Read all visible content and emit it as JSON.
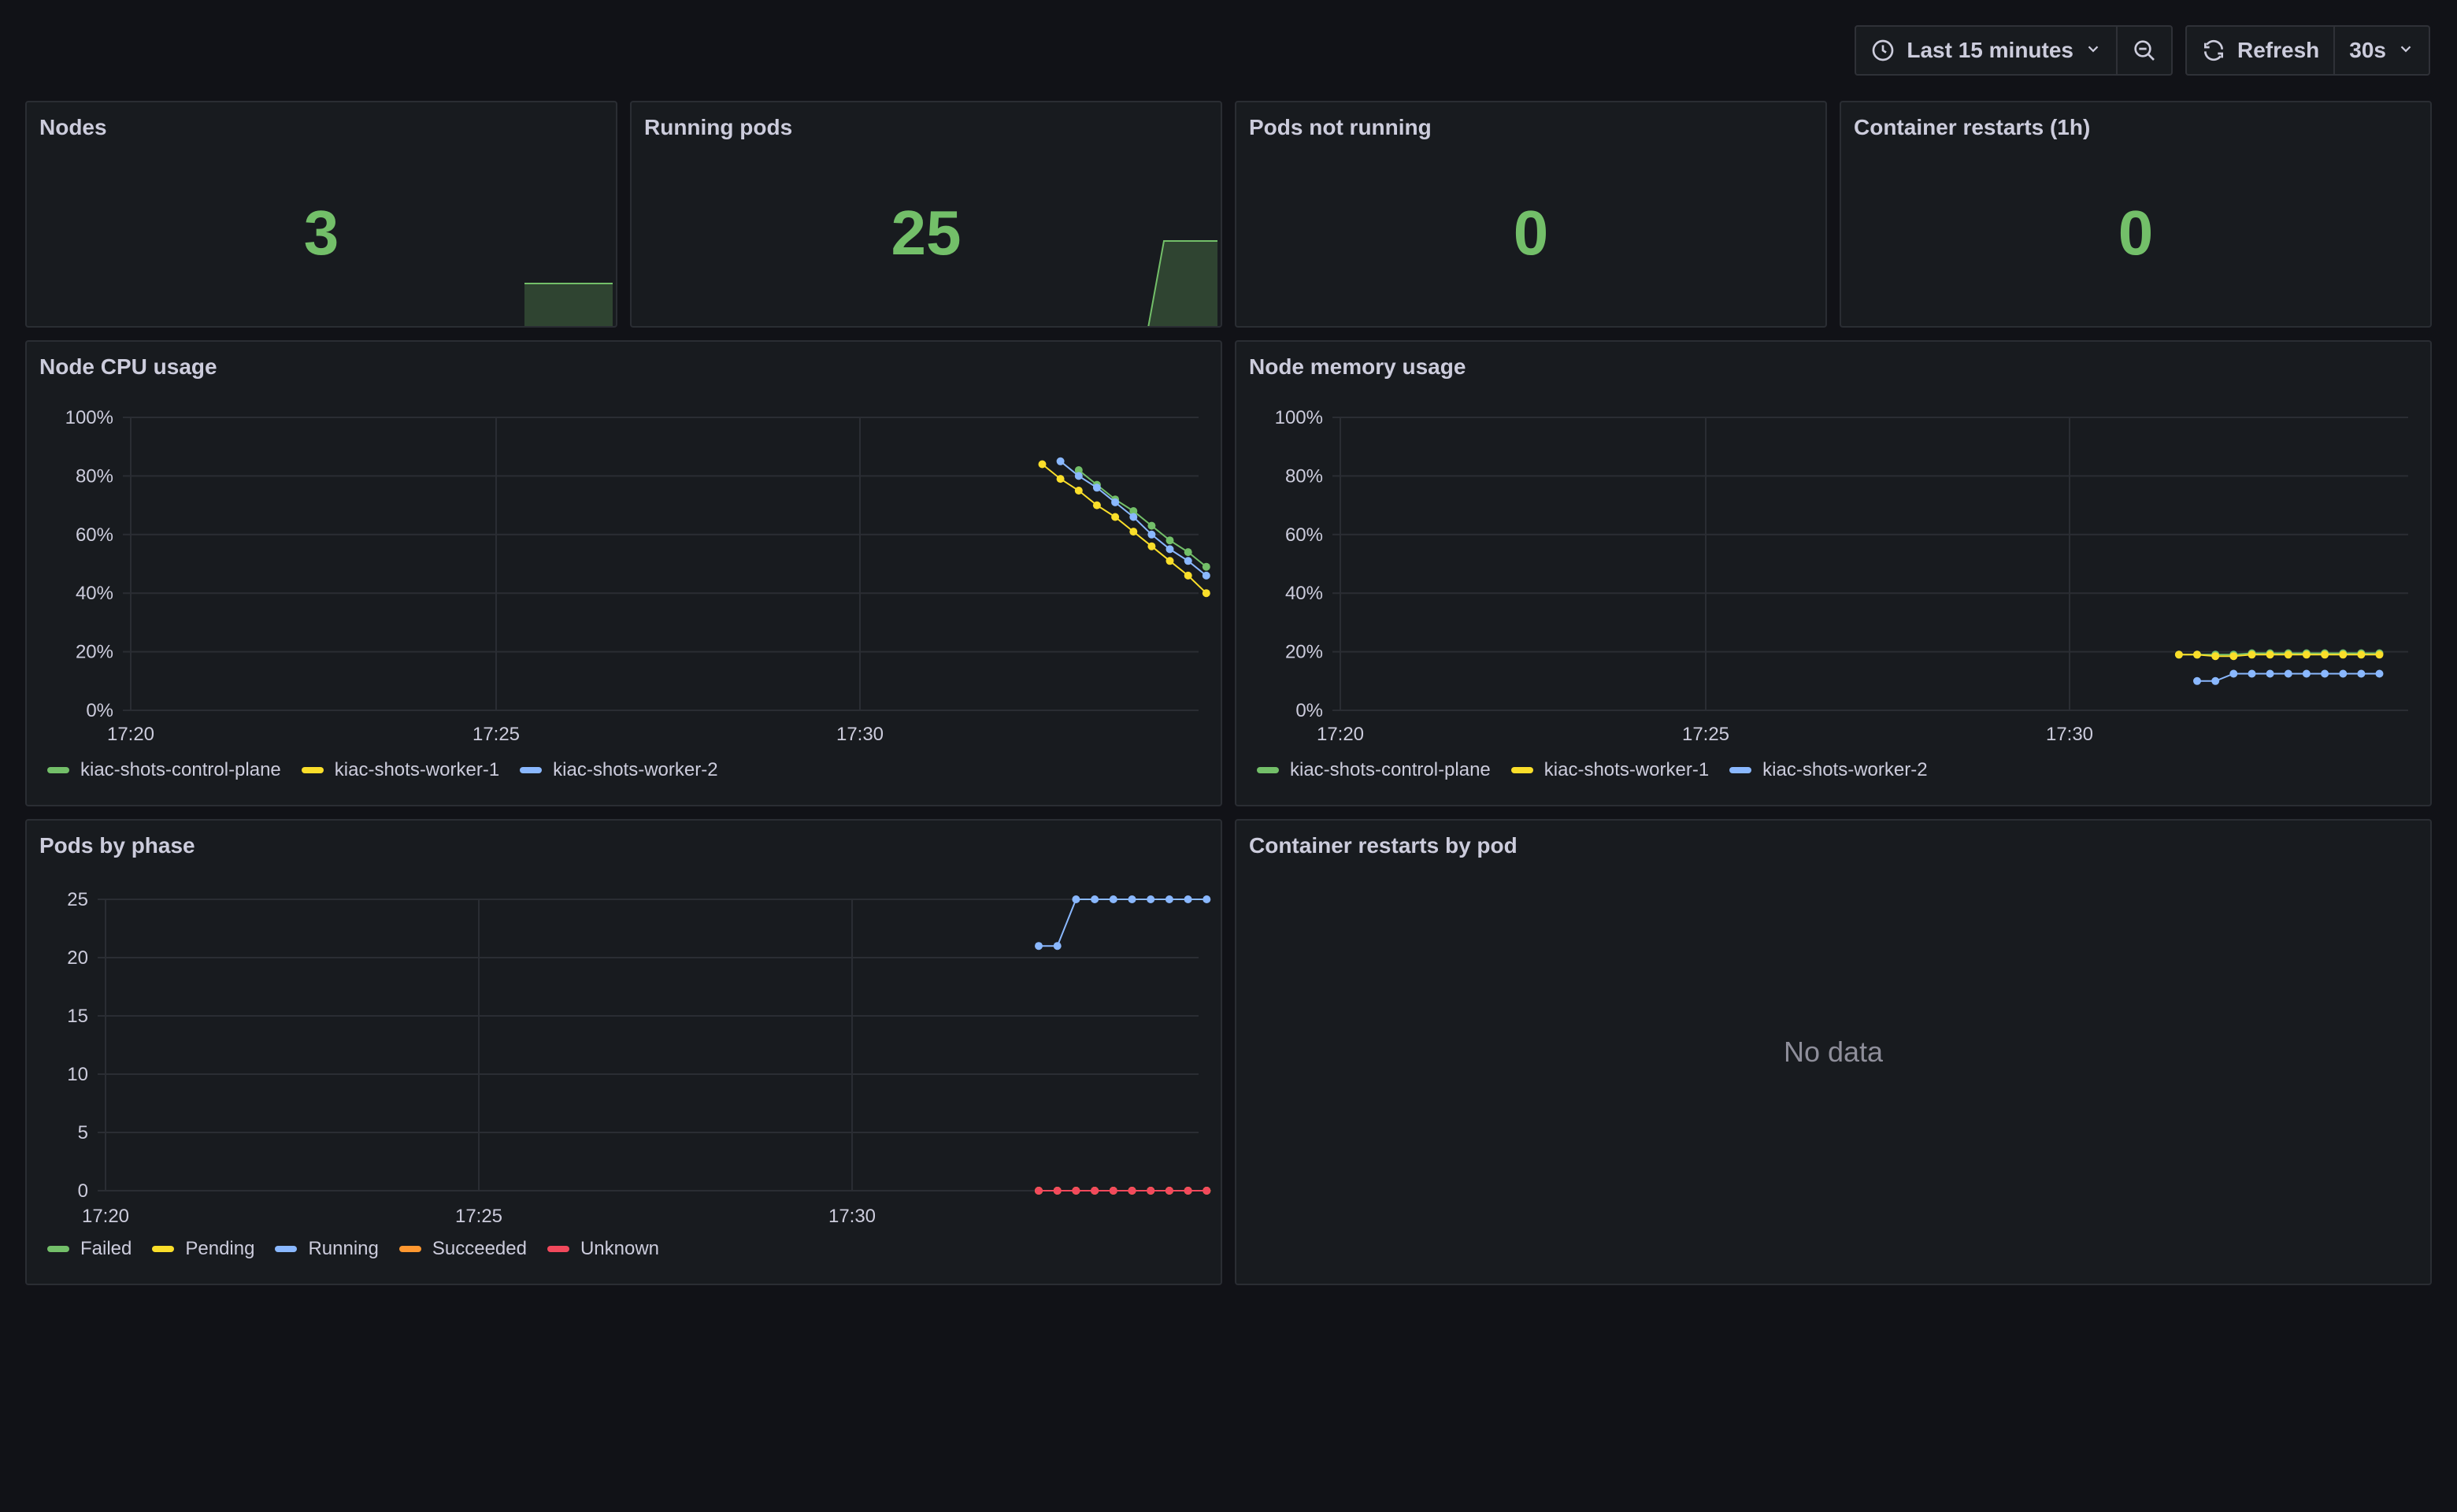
{
  "toolbar": {
    "time_range": "Last 15 minutes",
    "refresh_label": "Refresh",
    "refresh_interval": "30s"
  },
  "stats": [
    {
      "title": "Nodes",
      "value": "3"
    },
    {
      "title": "Running pods",
      "value": "25"
    },
    {
      "title": "Pods not running",
      "value": "0"
    },
    {
      "title": "Container restarts (1h)",
      "value": "0"
    }
  ],
  "panels": {
    "cpu_title": "Node CPU usage",
    "mem_title": "Node memory usage",
    "phase_title": "Pods by phase",
    "restarts_title": "Container restarts by pod",
    "no_data": "No data"
  },
  "colors": {
    "green": "#73bf69",
    "yellow": "#fade2a",
    "blue": "#8ab8ff",
    "orange": "#ff9830",
    "red": "#f2495c"
  },
  "chart_data": [
    {
      "id": "cpu",
      "type": "line",
      "title": "Node CPU usage",
      "x_ticks": [
        "17:20",
        "17:25",
        "17:30"
      ],
      "y_ticks": [
        "0%",
        "20%",
        "40%",
        "60%",
        "80%",
        "100%"
      ],
      "ylim": [
        0,
        100
      ],
      "grid": true,
      "legend_placement": "bottom",
      "x": [
        "17:32:30",
        "17:32:45",
        "17:33:00",
        "17:33:15",
        "17:33:30",
        "17:33:45",
        "17:34:00",
        "17:34:15",
        "17:34:30",
        "17:34:45"
      ],
      "series": [
        {
          "name": "kiac-shots-control-plane",
          "color": "#73bf69",
          "values": [
            null,
            null,
            82,
            77,
            72,
            68,
            63,
            58,
            54,
            49
          ]
        },
        {
          "name": "kiac-shots-worker-1",
          "color": "#fade2a",
          "values": [
            84,
            79,
            75,
            70,
            66,
            61,
            56,
            51,
            46,
            40
          ]
        },
        {
          "name": "kiac-shots-worker-2",
          "color": "#8ab8ff",
          "values": [
            null,
            85,
            80,
            76,
            71,
            66,
            60,
            55,
            51,
            46
          ]
        }
      ]
    },
    {
      "id": "mem",
      "type": "line",
      "title": "Node memory usage",
      "x_ticks": [
        "17:20",
        "17:25",
        "17:30"
      ],
      "y_ticks": [
        "0%",
        "20%",
        "40%",
        "60%",
        "80%",
        "100%"
      ],
      "ylim": [
        0,
        100
      ],
      "grid": true,
      "legend_placement": "bottom",
      "x": [
        "17:31:30",
        "17:31:45",
        "17:32:00",
        "17:32:15",
        "17:32:30",
        "17:32:45",
        "17:33:00",
        "17:33:15",
        "17:33:30",
        "17:33:45",
        "17:34:00",
        "17:34:15"
      ],
      "series": [
        {
          "name": "kiac-shots-control-plane",
          "color": "#73bf69",
          "values": [
            19,
            19,
            19,
            19,
            19.5,
            19.5,
            19.5,
            19.5,
            19.5,
            19.5,
            19.5,
            19.5
          ]
        },
        {
          "name": "kiac-shots-worker-1",
          "color": "#fade2a",
          "values": [
            19,
            19,
            18.5,
            18.5,
            19,
            19,
            19,
            19,
            19,
            19,
            19,
            19
          ]
        },
        {
          "name": "kiac-shots-worker-2",
          "color": "#8ab8ff",
          "values": [
            null,
            10,
            10,
            12.5,
            12.5,
            12.5,
            12.5,
            12.5,
            12.5,
            12.5,
            12.5,
            12.5
          ]
        }
      ]
    },
    {
      "id": "phase",
      "type": "line",
      "title": "Pods by phase",
      "x_ticks": [
        "17:20",
        "17:25",
        "17:30"
      ],
      "y_ticks": [
        "0",
        "5",
        "10",
        "15",
        "20",
        "25"
      ],
      "ylim": [
        0,
        28
      ],
      "grid": true,
      "legend_placement": "bottom",
      "x": [
        "17:32:30",
        "17:32:45",
        "17:33:00",
        "17:33:15",
        "17:33:30",
        "17:33:45",
        "17:34:00",
        "17:34:15",
        "17:34:30",
        "17:34:45"
      ],
      "series": [
        {
          "name": "Failed",
          "color": "#73bf69",
          "values": [
            0,
            0,
            0,
            0,
            0,
            0,
            0,
            0,
            0,
            0
          ]
        },
        {
          "name": "Pending",
          "color": "#fade2a",
          "values": [
            0,
            0,
            0,
            0,
            0,
            0,
            0,
            0,
            0,
            0
          ]
        },
        {
          "name": "Running",
          "color": "#8ab8ff",
          "values": [
            21,
            21,
            25,
            25,
            25,
            25,
            25,
            25,
            25,
            25
          ]
        },
        {
          "name": "Succeeded",
          "color": "#ff9830",
          "values": [
            0,
            0,
            0,
            0,
            0,
            0,
            0,
            0,
            0,
            0
          ]
        },
        {
          "name": "Unknown",
          "color": "#f2495c",
          "values": [
            0,
            0,
            0,
            0,
            0,
            0,
            0,
            0,
            0,
            0
          ]
        }
      ]
    }
  ]
}
